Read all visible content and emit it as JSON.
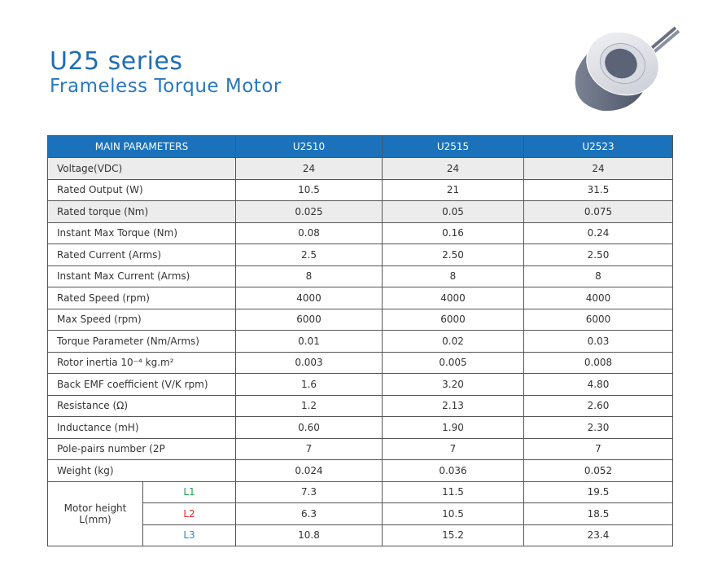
{
  "title": "U25 series",
  "subtitle": "Frameless Torque Motor",
  "table": {
    "headers": [
      "MAIN PARAMETERS",
      "U2510",
      "U2515",
      "U2523"
    ],
    "rows": [
      {
        "label": "Voltage(VDC)",
        "values": [
          "24",
          "24",
          "24"
        ]
      },
      {
        "label": "Rated Output (W)",
        "values": [
          "10.5",
          "21",
          "31.5"
        ]
      },
      {
        "label": "Rated torque (Nm)",
        "values": [
          "0.025",
          "0.05",
          "0.075"
        ]
      },
      {
        "label": "Instant Max Torque (Nm)",
        "values": [
          "0.08",
          "0.16",
          "0.24"
        ]
      },
      {
        "label": "Rated Current (Arms)",
        "values": [
          "2.5",
          "2.50",
          "2.50"
        ]
      },
      {
        "label": "Instant Max Current (Arms)",
        "values": [
          "8",
          "8",
          "8"
        ]
      },
      {
        "label": "Rated Speed (rpm)",
        "values": [
          "4000",
          "4000",
          "4000"
        ]
      },
      {
        "label": "Max  Speed (rpm)",
        "values": [
          "6000",
          "6000",
          "6000"
        ]
      },
      {
        "label": "Torque Parameter (Nm/Arms)",
        "values": [
          "0.01",
          "0.02",
          "0.03"
        ]
      },
      {
        "label": "Rotor inertia 10⁻⁴ kg.m²",
        "values": [
          "0.003",
          "0.005",
          "0.008"
        ]
      },
      {
        "label": "Back EMF coefficient (V/K rpm)",
        "values": [
          "1.6",
          "3.20",
          "4.80"
        ]
      },
      {
        "label": " Resistance (Ω)",
        "values": [
          "1.2",
          "2.13",
          "2.60"
        ]
      },
      {
        "label": " Inductance (mH)",
        "values": [
          "0.60",
          "1.90",
          "2.30"
        ]
      },
      {
        "label": "Pole-pairs number (2P",
        "values": [
          "7",
          "7",
          "7"
        ]
      },
      {
        "label": "Weight (kg)",
        "values": [
          "0.024",
          "0.036",
          "0.052"
        ]
      }
    ],
    "motor_height": {
      "label": "Motor height L(mm)",
      "sub": [
        {
          "label": "L1",
          "values": [
            "7.3",
            "11.5",
            "19.5"
          ]
        },
        {
          "label": "L2",
          "values": [
            "6.3",
            "10.5",
            "18.5"
          ]
        },
        {
          "label": "L3",
          "values": [
            "10.8",
            "15.2",
            "23.4"
          ]
        }
      ]
    }
  }
}
